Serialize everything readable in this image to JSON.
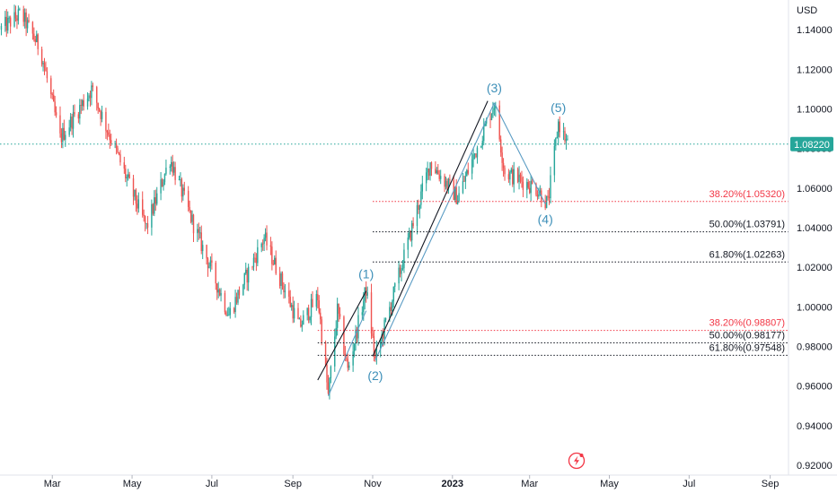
{
  "chart_data": {
    "type": "candlestick",
    "y_unit": "USD",
    "ylim": [
      0.915,
      1.155
    ],
    "y_ticks": [
      "1.14000",
      "1.12000",
      "1.10000",
      "1.08000",
      "1.06000",
      "1.04000",
      "1.02000",
      "1.00000",
      "0.98000",
      "0.96000",
      "0.94000",
      "0.92000"
    ],
    "x_ticks": [
      {
        "label": "Mar",
        "date": "2022-03-01"
      },
      {
        "label": "May",
        "date": "2022-05-01"
      },
      {
        "label": "Jul",
        "date": "2022-07-01"
      },
      {
        "label": "Sep",
        "date": "2022-09-01"
      },
      {
        "label": "Nov",
        "date": "2022-11-01"
      },
      {
        "label": "2023",
        "date": "2023-01-01"
      },
      {
        "label": "Mar",
        "date": "2023-03-01"
      },
      {
        "label": "May",
        "date": "2023-05-01"
      },
      {
        "label": "Jul",
        "date": "2023-07-01"
      },
      {
        "label": "Sep",
        "date": "2023-09-01"
      }
    ],
    "x_range": [
      "2022-01-20",
      "2023-09-15"
    ],
    "current_price": {
      "label": "1.08220",
      "value": 1.0822,
      "color": "#26a69a"
    },
    "price_path": [
      {
        "date": "2022-01-20",
        "price": 1.14
      },
      {
        "date": "2022-02-05",
        "price": 1.148
      },
      {
        "date": "2022-02-20",
        "price": 1.13
      },
      {
        "date": "2022-03-07",
        "price": 1.085
      },
      {
        "date": "2022-03-31",
        "price": 1.11
      },
      {
        "date": "2022-04-25",
        "price": 1.068
      },
      {
        "date": "2022-05-12",
        "price": 1.04
      },
      {
        "date": "2022-05-30",
        "price": 1.075
      },
      {
        "date": "2022-06-15",
        "price": 1.045
      },
      {
        "date": "2022-07-14",
        "price": 0.996
      },
      {
        "date": "2022-08-10",
        "price": 1.035
      },
      {
        "date": "2022-09-06",
        "price": 0.99
      },
      {
        "date": "2022-09-20",
        "price": 1.005
      },
      {
        "date": "2022-09-28",
        "price": 0.955
      },
      {
        "date": "2022-10-05",
        "price": 0.998
      },
      {
        "date": "2022-10-13",
        "price": 0.968
      },
      {
        "date": "2022-10-27",
        "price": 1.009
      },
      {
        "date": "2022-11-03",
        "price": 0.973
      },
      {
        "date": "2022-12-15",
        "price": 1.073
      },
      {
        "date": "2023-01-05",
        "price": 1.055
      },
      {
        "date": "2023-02-02",
        "price": 1.103
      },
      {
        "date": "2023-02-10",
        "price": 1.068
      },
      {
        "date": "2023-03-06",
        "price": 1.06
      },
      {
        "date": "2023-03-15",
        "price": 1.052
      },
      {
        "date": "2023-03-23",
        "price": 1.093
      },
      {
        "date": "2023-03-30",
        "price": 1.0822
      }
    ],
    "wave_labels": [
      {
        "label": "(1)",
        "date": "2022-10-27",
        "price": 1.009,
        "position": "above"
      },
      {
        "label": "(2)",
        "date": "2022-11-03",
        "price": 0.973,
        "position": "below"
      },
      {
        "label": "(3)",
        "date": "2023-02-02",
        "price": 1.103,
        "position": "above"
      },
      {
        "label": "(4)",
        "date": "2023-03-13",
        "price": 1.052,
        "position": "below"
      },
      {
        "label": "(5)",
        "date": "2023-03-23",
        "price": 1.093,
        "position": "above"
      }
    ],
    "trend_lines": [
      {
        "color": "#131722",
        "from": {
          "date": "2022-09-20",
          "price": 0.963
        },
        "to": {
          "date": "2022-10-27",
          "price": 1.008
        }
      },
      {
        "color": "#131722",
        "from": {
          "date": "2022-11-01",
          "price": 0.975
        },
        "to": {
          "date": "2023-01-28",
          "price": 1.104
        }
      },
      {
        "color": "#5b9cc4",
        "from": {
          "date": "2022-09-28",
          "price": 0.955
        },
        "to": {
          "date": "2022-10-27",
          "price": 0.998
        }
      },
      {
        "color": "#5b9cc4",
        "from": {
          "date": "2022-11-03",
          "price": 0.973
        },
        "to": {
          "date": "2023-02-02",
          "price": 1.103
        }
      },
      {
        "color": "#5b9cc4",
        "from": {
          "date": "2023-02-02",
          "price": 1.103
        },
        "to": {
          "date": "2023-03-13",
          "price": 1.052
        }
      }
    ],
    "fib_levels": [
      {
        "label": "38.20%(1.05320)",
        "value": 1.0532,
        "color": "#f23645",
        "from_date": "2022-11-01"
      },
      {
        "label": "50.00%(1.03791)",
        "value": 1.03791,
        "color": "#131722",
        "from_date": "2022-11-01"
      },
      {
        "label": "61.80%(1.02263)",
        "value": 1.02263,
        "color": "#131722",
        "from_date": "2022-11-01"
      },
      {
        "label": "38.20%(0.98807)",
        "value": 0.98807,
        "color": "#f23645",
        "from_date": "2022-09-20"
      },
      {
        "label": "50.00%(0.98177)",
        "value": 0.98177,
        "color": "#131722",
        "from_date": "2022-09-20"
      },
      {
        "label": "61.80%(0.97548)",
        "value": 0.97548,
        "color": "#131722",
        "from_date": "2022-09-20"
      }
    ],
    "candle_colors": {
      "up": "#26a69a",
      "down": "#ef5350"
    },
    "grid": false
  }
}
